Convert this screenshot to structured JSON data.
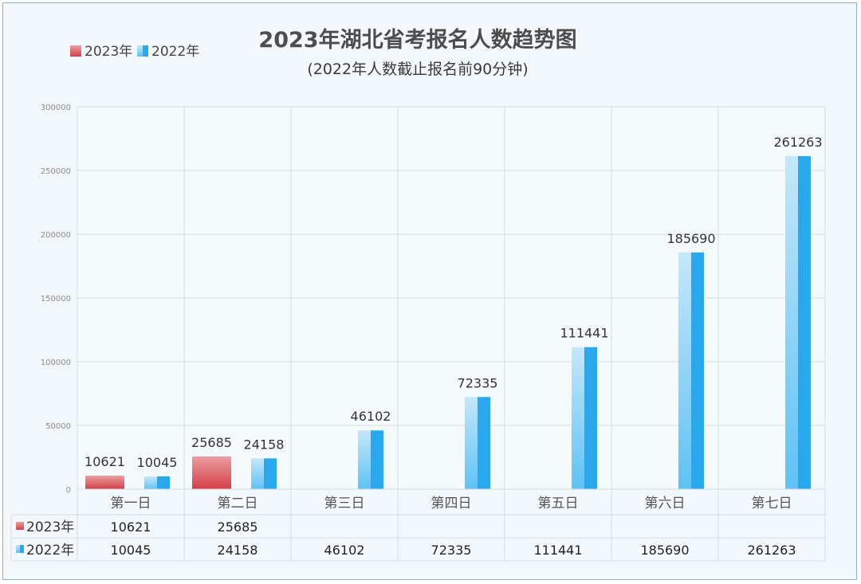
{
  "chart_data": {
    "type": "bar",
    "title": "2023年湖北省考报名人数趋势图",
    "subtitle": "(2022年人数截止报名前90分钟)",
    "categories": [
      "第一日",
      "第二日",
      "第三日",
      "第四日",
      "第五日",
      "第六日",
      "第七日"
    ],
    "series": [
      {
        "name": "2023年",
        "values": [
          10621,
          25685,
          null,
          null,
          null,
          null,
          null
        ],
        "color": "#d94a52"
      },
      {
        "name": "2022年",
        "values": [
          10045,
          24158,
          46102,
          72335,
          111441,
          185690,
          261263
        ],
        "color": "#2aa8ee"
      }
    ],
    "ylim": [
      0,
      300000
    ],
    "yticks": [
      0,
      50000,
      100000,
      150000,
      200000,
      250000,
      300000
    ],
    "grid": true,
    "legend": "top-left",
    "data_table": true
  }
}
